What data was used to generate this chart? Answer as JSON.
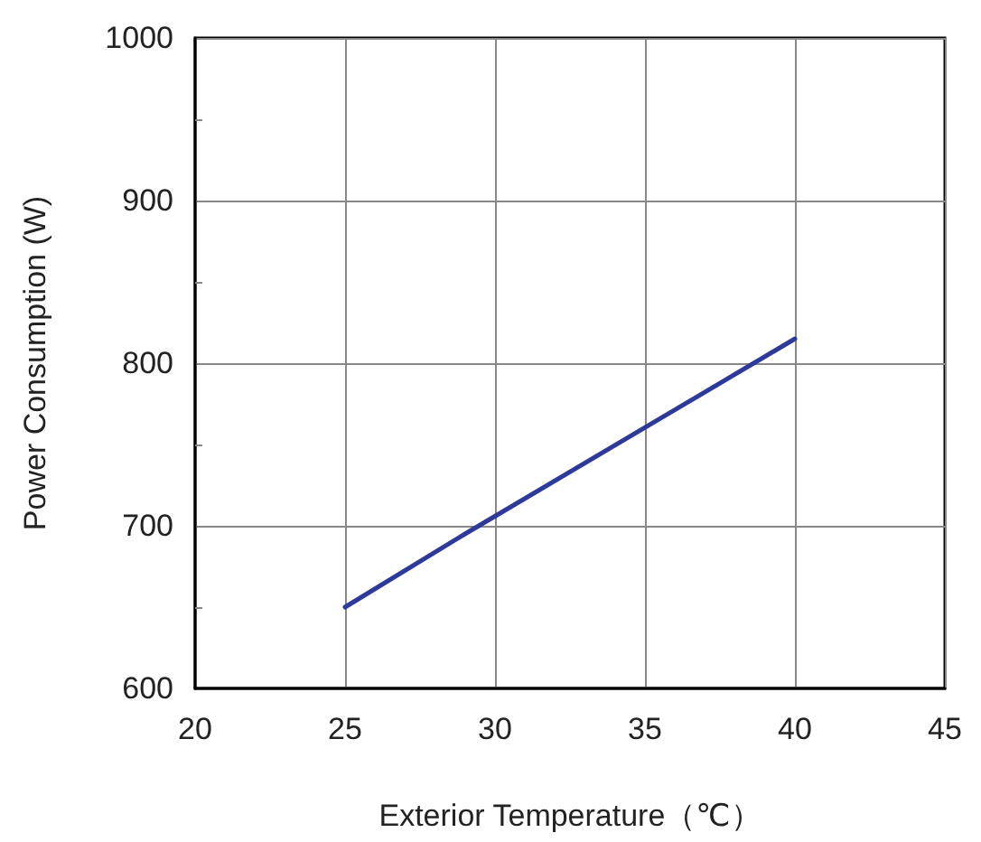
{
  "chart_data": {
    "type": "line",
    "xlabel": "Exterior Temperature（℃）",
    "ylabel": "Power Consumption (W)",
    "x": [
      25,
      29,
      40
    ],
    "series": [
      {
        "color": "#2e3a9a",
        "values": [
          650,
          695,
          815
        ]
      }
    ],
    "xlim": [
      20,
      45
    ],
    "xticks": [
      20,
      25,
      30,
      35,
      40,
      45
    ],
    "ylim": [
      600,
      1000
    ],
    "yticks": [
      600,
      {
        "value": 650,
        "label": null
      },
      700,
      {
        "value": 750,
        "label": null
      },
      800,
      {
        "value": 850,
        "label": null
      },
      900,
      {
        "value": 950,
        "label": null
      },
      1000
    ],
    "grid": true,
    "marker": "none",
    "line_style": "solid"
  }
}
